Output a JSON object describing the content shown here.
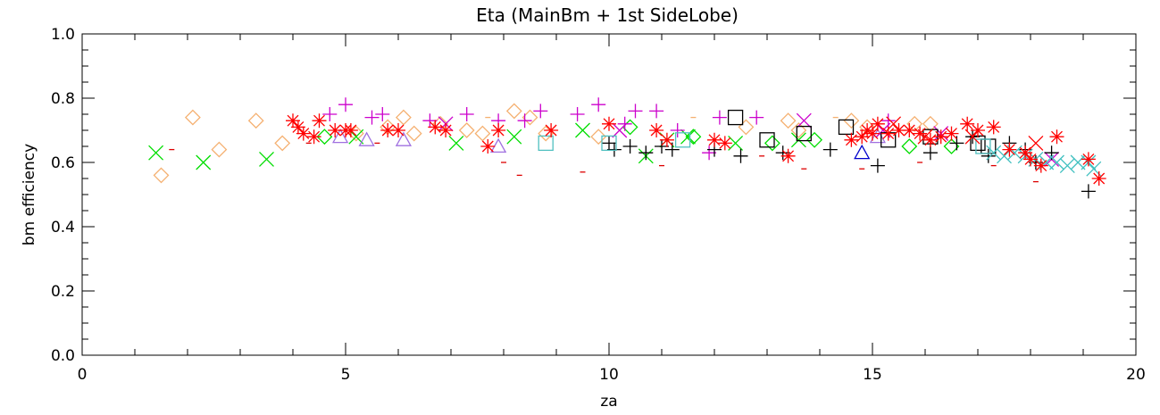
{
  "chart_data": {
    "type": "scatter",
    "title": "Eta (MainBm + 1st SideLobe)",
    "xlabel": "za",
    "ylabel": "bm efficiency",
    "xlim": [
      0,
      20
    ],
    "ylim": [
      0.0,
      1.0
    ],
    "x_ticks": [
      0,
      5,
      10,
      15,
      20
    ],
    "y_ticks": [
      0.0,
      0.2,
      0.4,
      0.6,
      0.8,
      1.0
    ],
    "x_tick_labels": [
      "0",
      "5",
      "10",
      "15",
      "20"
    ],
    "y_tick_labels": [
      "0.0",
      "0.2",
      "0.4",
      "0.6",
      "0.8",
      "1.0"
    ],
    "grid": false,
    "series": [
      {
        "marker": "diamond",
        "color": "#f5b070",
        "points": [
          [
            1.5,
            0.56
          ],
          [
            2.1,
            0.74
          ],
          [
            2.6,
            0.64
          ],
          [
            3.3,
            0.73
          ],
          [
            3.8,
            0.66
          ],
          [
            5.2,
            0.69
          ],
          [
            5.8,
            0.71
          ],
          [
            6.1,
            0.74
          ],
          [
            6.3,
            0.69
          ],
          [
            6.8,
            0.72
          ],
          [
            7.3,
            0.7
          ],
          [
            7.6,
            0.69
          ],
          [
            8.2,
            0.76
          ],
          [
            8.5,
            0.74
          ],
          [
            8.8,
            0.69
          ],
          [
            9.8,
            0.68
          ],
          [
            12.6,
            0.71
          ],
          [
            13.4,
            0.73
          ],
          [
            13.6,
            0.7
          ],
          [
            14.6,
            0.73
          ],
          [
            14.9,
            0.71
          ],
          [
            15.8,
            0.72
          ],
          [
            16.1,
            0.72
          ]
        ]
      },
      {
        "marker": "x",
        "color": "#00dd00",
        "points": [
          [
            1.4,
            0.63
          ],
          [
            2.3,
            0.6
          ],
          [
            3.5,
            0.61
          ],
          [
            5.2,
            0.68
          ],
          [
            7.1,
            0.66
          ],
          [
            8.2,
            0.68
          ],
          [
            9.5,
            0.7
          ],
          [
            10.7,
            0.62
          ],
          [
            11.1,
            0.67
          ],
          [
            11.5,
            0.68
          ],
          [
            12.4,
            0.66
          ],
          [
            13.6,
            0.67
          ]
        ]
      },
      {
        "marker": "diamond",
        "color": "#00dd00",
        "points": [
          [
            4.6,
            0.68
          ],
          [
            10.4,
            0.71
          ],
          [
            11.6,
            0.68
          ],
          [
            13.1,
            0.66
          ],
          [
            13.9,
            0.67
          ],
          [
            15.7,
            0.65
          ],
          [
            16.5,
            0.65
          ]
        ]
      },
      {
        "marker": "triangle",
        "color": "#a070e0",
        "points": [
          [
            4.9,
            0.68
          ],
          [
            5.4,
            0.67
          ],
          [
            6.1,
            0.67
          ],
          [
            7.9,
            0.65
          ],
          [
            15.1,
            0.68
          ]
        ]
      },
      {
        "marker": "plus",
        "color": "#cc00cc",
        "points": [
          [
            4.7,
            0.75
          ],
          [
            5.0,
            0.78
          ],
          [
            5.5,
            0.74
          ],
          [
            5.7,
            0.75
          ],
          [
            6.6,
            0.73
          ],
          [
            7.3,
            0.75
          ],
          [
            7.9,
            0.73
          ],
          [
            8.4,
            0.73
          ],
          [
            8.7,
            0.76
          ],
          [
            9.4,
            0.75
          ],
          [
            9.8,
            0.78
          ],
          [
            10.3,
            0.72
          ],
          [
            10.5,
            0.76
          ],
          [
            10.9,
            0.76
          ],
          [
            12.1,
            0.74
          ],
          [
            12.8,
            0.74
          ],
          [
            11.3,
            0.7
          ],
          [
            11.9,
            0.63
          ],
          [
            15.3,
            0.73
          ]
        ]
      },
      {
        "marker": "x",
        "color": "#cc00cc",
        "points": [
          [
            6.9,
            0.72
          ],
          [
            10.2,
            0.7
          ],
          [
            13.7,
            0.73
          ],
          [
            15.2,
            0.7
          ],
          [
            16.3,
            0.69
          ],
          [
            18.4,
            0.61
          ]
        ]
      },
      {
        "marker": "dash",
        "color": "#dd0000",
        "points": [
          [
            1.7,
            0.64
          ],
          [
            4.3,
            0.66
          ],
          [
            5.6,
            0.66
          ],
          [
            8.0,
            0.6
          ],
          [
            8.3,
            0.56
          ],
          [
            9.5,
            0.57
          ],
          [
            10.1,
            0.64
          ],
          [
            11.0,
            0.59
          ],
          [
            12.9,
            0.62
          ],
          [
            13.7,
            0.58
          ],
          [
            14.8,
            0.58
          ],
          [
            15.9,
            0.6
          ],
          [
            17.3,
            0.59
          ],
          [
            18.1,
            0.54
          ]
        ]
      },
      {
        "marker": "dash",
        "color": "#f5b070",
        "points": [
          [
            7.7,
            0.74
          ],
          [
            11.6,
            0.74
          ],
          [
            14.3,
            0.74
          ]
        ]
      },
      {
        "marker": "plus",
        "color": "#000000",
        "points": [
          [
            10.0,
            0.66
          ],
          [
            10.1,
            0.64
          ],
          [
            10.4,
            0.65
          ],
          [
            10.7,
            0.63
          ],
          [
            11.0,
            0.65
          ],
          [
            11.2,
            0.64
          ],
          [
            12.0,
            0.64
          ],
          [
            12.5,
            0.62
          ],
          [
            13.3,
            0.63
          ],
          [
            14.2,
            0.64
          ],
          [
            15.1,
            0.59
          ],
          [
            16.1,
            0.63
          ],
          [
            16.6,
            0.66
          ],
          [
            16.9,
            0.68
          ],
          [
            17.2,
            0.62
          ],
          [
            17.6,
            0.66
          ],
          [
            17.9,
            0.64
          ],
          [
            18.1,
            0.6
          ],
          [
            18.4,
            0.63
          ],
          [
            19.1,
            0.51
          ]
        ]
      },
      {
        "marker": "square",
        "color": "#000000",
        "points": [
          [
            12.4,
            0.74
          ],
          [
            13.0,
            0.67
          ],
          [
            13.7,
            0.69
          ],
          [
            14.5,
            0.71
          ],
          [
            15.3,
            0.67
          ],
          [
            16.1,
            0.68
          ],
          [
            17.0,
            0.66
          ],
          [
            17.2,
            0.65
          ]
        ]
      },
      {
        "marker": "square",
        "color": "#50c0c0",
        "points": [
          [
            8.8,
            0.66
          ],
          [
            10.0,
            0.66
          ],
          [
            11.4,
            0.67
          ],
          [
            17.1,
            0.65
          ]
        ]
      },
      {
        "marker": "triangle",
        "color": "#0000cc",
        "points": [
          [
            14.8,
            0.63
          ]
        ]
      },
      {
        "marker": "x",
        "color": "#40c0c0",
        "points": [
          [
            17.3,
            0.63
          ],
          [
            17.5,
            0.62
          ],
          [
            17.7,
            0.63
          ],
          [
            17.9,
            0.62
          ],
          [
            18.1,
            0.61
          ],
          [
            18.3,
            0.6
          ],
          [
            18.5,
            0.6
          ],
          [
            18.7,
            0.59
          ],
          [
            18.9,
            0.6
          ],
          [
            19.1,
            0.6
          ],
          [
            19.2,
            0.58
          ]
        ]
      },
      {
        "marker": "asterisk",
        "color": "#ff0000",
        "points": [
          [
            4.0,
            0.73
          ],
          [
            4.1,
            0.71
          ],
          [
            4.2,
            0.69
          ],
          [
            4.4,
            0.68
          ],
          [
            4.5,
            0.73
          ],
          [
            4.8,
            0.7
          ],
          [
            5.0,
            0.7
          ],
          [
            5.1,
            0.7
          ],
          [
            5.8,
            0.7
          ],
          [
            6.0,
            0.7
          ],
          [
            6.7,
            0.71
          ],
          [
            6.9,
            0.7
          ],
          [
            7.7,
            0.65
          ],
          [
            7.9,
            0.7
          ],
          [
            8.9,
            0.7
          ],
          [
            10.0,
            0.72
          ],
          [
            10.9,
            0.7
          ],
          [
            11.1,
            0.67
          ],
          [
            12.0,
            0.67
          ],
          [
            12.2,
            0.66
          ],
          [
            13.4,
            0.62
          ],
          [
            14.6,
            0.67
          ],
          [
            14.8,
            0.68
          ],
          [
            14.9,
            0.7
          ],
          [
            15.0,
            0.69
          ],
          [
            15.1,
            0.72
          ],
          [
            15.3,
            0.69
          ],
          [
            15.5,
            0.7
          ],
          [
            15.7,
            0.7
          ],
          [
            15.9,
            0.69
          ],
          [
            16.1,
            0.67
          ],
          [
            16.3,
            0.68
          ],
          [
            16.5,
            0.69
          ],
          [
            16.8,
            0.72
          ],
          [
            17.0,
            0.7
          ],
          [
            17.3,
            0.71
          ],
          [
            17.6,
            0.64
          ],
          [
            17.9,
            0.63
          ],
          [
            18.0,
            0.61
          ],
          [
            18.2,
            0.59
          ],
          [
            18.5,
            0.68
          ],
          [
            19.1,
            0.61
          ],
          [
            19.3,
            0.55
          ]
        ]
      },
      {
        "marker": "x",
        "color": "#ff0000",
        "points": [
          [
            15.4,
            0.72
          ],
          [
            16.0,
            0.68
          ],
          [
            16.9,
            0.68
          ],
          [
            18.1,
            0.66
          ]
        ]
      }
    ]
  }
}
